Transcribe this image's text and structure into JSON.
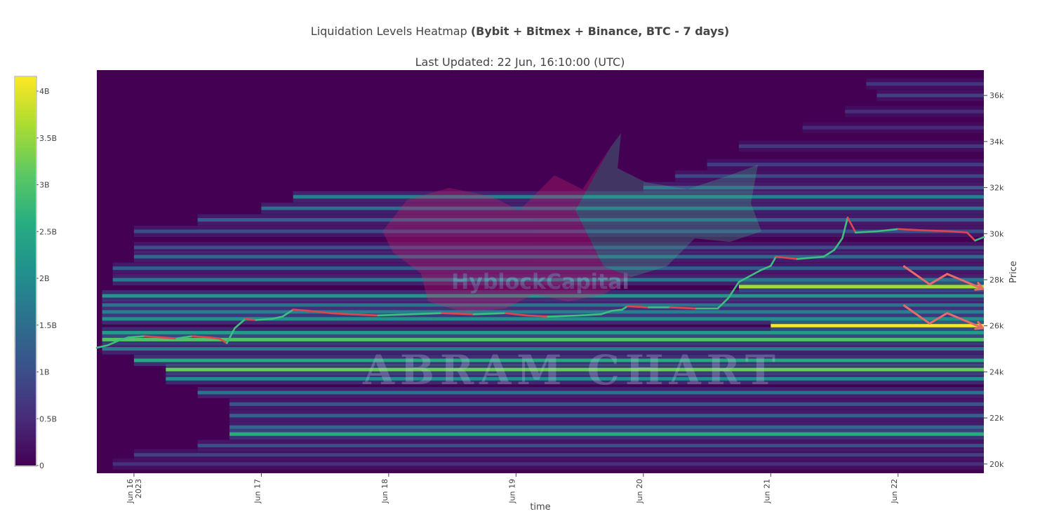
{
  "chart_data": {
    "type": "heatmap",
    "title_prefix": "Liquidation Levels Heatmap ",
    "title_bold": "(Bybit + Bitmex + Binance, BTC - 7 days)",
    "subtitle": "Last Updated: 22 Jun, 16:10:00 (UTC)",
    "xlabel": "time",
    "ylabel": "Price",
    "x_range": [
      "2023-06-15 17:00",
      "2023-06-22 16:10"
    ],
    "x_ticks": [
      {
        "t": "2023-06-16",
        "label": "Jun 16",
        "sub": "2023"
      },
      {
        "t": "2023-06-17",
        "label": "Jun 17",
        "sub": ""
      },
      {
        "t": "2023-06-18",
        "label": "Jun 18",
        "sub": ""
      },
      {
        "t": "2023-06-19",
        "label": "Jun 19",
        "sub": ""
      },
      {
        "t": "2023-06-20",
        "label": "Jun 20",
        "sub": ""
      },
      {
        "t": "2023-06-21",
        "label": "Jun 21",
        "sub": ""
      },
      {
        "t": "2023-06-22",
        "label": "Jun 22",
        "sub": ""
      }
    ],
    "y_range": [
      19600,
      37100
    ],
    "y_ticks": [
      {
        "v": 20000,
        "label": "20k"
      },
      {
        "v": 22000,
        "label": "22k"
      },
      {
        "v": 24000,
        "label": "24k"
      },
      {
        "v": 26000,
        "label": "26k"
      },
      {
        "v": 28000,
        "label": "28k"
      },
      {
        "v": 30000,
        "label": "30k"
      },
      {
        "v": 32000,
        "label": "32k"
      },
      {
        "v": 34000,
        "label": "34k"
      },
      {
        "v": 36000,
        "label": "36k"
      }
    ],
    "colorbar": {
      "min": 0,
      "max": 4150000000,
      "ticks": [
        {
          "v": 0,
          "label": "0"
        },
        {
          "v": 500000000,
          "label": "0.5B"
        },
        {
          "v": 1000000000,
          "label": "1B"
        },
        {
          "v": 1500000000,
          "label": "1.5B"
        },
        {
          "v": 2000000000,
          "label": "2B"
        },
        {
          "v": 2500000000,
          "label": "2.5B"
        },
        {
          "v": 3000000000,
          "label": "3B"
        },
        {
          "v": 3500000000,
          "label": "3.5B"
        },
        {
          "v": 4000000000,
          "label": "4B"
        }
      ],
      "colorscale": [
        "#440154",
        "#472c7a",
        "#3b518b",
        "#2c718e",
        "#21908d",
        "#27ad81",
        "#5cc863",
        "#aadc32",
        "#fde725"
      ]
    },
    "heat_bands": [
      {
        "price": 36500,
        "start": "2023-06-21 18:00",
        "value": 650000000
      },
      {
        "price": 36000,
        "start": "2023-06-21 20:00",
        "value": 800000000
      },
      {
        "price": 35300,
        "start": "2023-06-21 14:00",
        "value": 550000000
      },
      {
        "price": 34600,
        "start": "2023-06-21 06:00",
        "value": 500000000
      },
      {
        "price": 33800,
        "start": "2023-06-20 18:00",
        "value": 700000000
      },
      {
        "price": 33000,
        "start": "2023-06-20 12:00",
        "value": 750000000
      },
      {
        "price": 32500,
        "start": "2023-06-20 06:00",
        "value": 900000000
      },
      {
        "price": 32000,
        "start": "2023-06-20 00:00",
        "value": 1200000000
      },
      {
        "price": 31600,
        "start": "2023-06-17 06:00",
        "value": 1800000000
      },
      {
        "price": 31100,
        "start": "2023-06-17 00:00",
        "value": 1500000000
      },
      {
        "price": 30600,
        "start": "2023-06-16 12:00",
        "value": 1300000000
      },
      {
        "price": 30100,
        "start": "2023-06-16 00:00",
        "value": 1000000000
      },
      {
        "price": 29400,
        "start": "2023-06-16 00:00",
        "value": 1000000000
      },
      {
        "price": 29000,
        "start": "2023-06-16 00:00",
        "value": 1400000000
      },
      {
        "price": 28500,
        "start": "2023-06-15 20:00",
        "value": 1200000000
      },
      {
        "price": 28000,
        "start": "2023-06-15 20:00",
        "value": 1700000000
      },
      {
        "price": 27700,
        "start": "2023-06-20 18:00",
        "value": 3600000000
      },
      {
        "price": 27300,
        "start": "2023-06-15 18:00",
        "value": 2200000000
      },
      {
        "price": 26900,
        "start": "2023-06-15 18:00",
        "value": 1600000000
      },
      {
        "price": 26600,
        "start": "2023-06-15 18:00",
        "value": 1800000000
      },
      {
        "price": 26300,
        "start": "2023-06-15 18:00",
        "value": 2100000000
      },
      {
        "price": 26000,
        "start": "2023-06-21 00:00",
        "value": 4150000000
      },
      {
        "price": 25700,
        "start": "2023-06-15 18:00",
        "value": 2300000000
      },
      {
        "price": 25400,
        "start": "2023-06-15 18:00",
        "value": 3000000000
      },
      {
        "price": 25000,
        "start": "2023-06-15 18:00",
        "value": 1700000000
      },
      {
        "price": 24500,
        "start": "2023-06-16 00:00",
        "value": 2500000000
      },
      {
        "price": 24100,
        "start": "2023-06-16 06:00",
        "value": 3200000000
      },
      {
        "price": 23700,
        "start": "2023-06-16 06:00",
        "value": 2000000000
      },
      {
        "price": 23100,
        "start": "2023-06-16 12:00",
        "value": 1600000000
      },
      {
        "price": 22600,
        "start": "2023-06-16 18:00",
        "value": 1100000000
      },
      {
        "price": 22100,
        "start": "2023-06-16 18:00",
        "value": 1300000000
      },
      {
        "price": 21600,
        "start": "2023-06-16 18:00",
        "value": 1400000000
      },
      {
        "price": 21300,
        "start": "2023-06-16 18:00",
        "value": 2600000000
      },
      {
        "price": 20800,
        "start": "2023-06-16 12:00",
        "value": 1000000000
      },
      {
        "price": 20400,
        "start": "2023-06-16 00:00",
        "value": 800000000
      },
      {
        "price": 20000,
        "start": "2023-06-15 20:00",
        "value": 600000000
      }
    ],
    "price_series": {
      "name": "BTC",
      "points": [
        [
          "2023-06-15 17:00",
          25050
        ],
        [
          "2023-06-15 19:00",
          25150
        ],
        [
          "2023-06-15 21:00",
          25350
        ],
        [
          "2023-06-15 23:00",
          25500
        ],
        [
          "2023-06-16 02:00",
          25550
        ],
        [
          "2023-06-16 05:00",
          25500
        ],
        [
          "2023-06-16 08:00",
          25450
        ],
        [
          "2023-06-16 11:00",
          25550
        ],
        [
          "2023-06-16 14:00",
          25500
        ],
        [
          "2023-06-16 16:00",
          25450
        ],
        [
          "2023-06-16 17:30",
          25250
        ],
        [
          "2023-06-16 19:00",
          25900
        ],
        [
          "2023-06-16 21:00",
          26300
        ],
        [
          "2023-06-16 23:00",
          26250
        ],
        [
          "2023-06-17 02:00",
          26300
        ],
        [
          "2023-06-17 04:00",
          26400
        ],
        [
          "2023-06-17 06:00",
          26700
        ],
        [
          "2023-06-17 09:00",
          26650
        ],
        [
          "2023-06-17 13:00",
          26550
        ],
        [
          "2023-06-17 17:00",
          26500
        ],
        [
          "2023-06-17 22:00",
          26450
        ],
        [
          "2023-06-18 04:00",
          26500
        ],
        [
          "2023-06-18 10:00",
          26550
        ],
        [
          "2023-06-18 16:00",
          26500
        ],
        [
          "2023-06-18 22:00",
          26550
        ],
        [
          "2023-06-19 02:00",
          26450
        ],
        [
          "2023-06-19 06:00",
          26400
        ],
        [
          "2023-06-19 12:00",
          26450
        ],
        [
          "2023-06-19 16:00",
          26500
        ],
        [
          "2023-06-19 18:00",
          26650
        ],
        [
          "2023-06-19 20:00",
          26700
        ],
        [
          "2023-06-19 21:00",
          26850
        ],
        [
          "2023-06-20 01:00",
          26800
        ],
        [
          "2023-06-20 05:00",
          26800
        ],
        [
          "2023-06-20 10:00",
          26750
        ],
        [
          "2023-06-20 14:00",
          26750
        ],
        [
          "2023-06-20 16:00",
          27200
        ],
        [
          "2023-06-20 18:00",
          27900
        ],
        [
          "2023-06-20 22:00",
          28400
        ],
        [
          "2023-06-21 00:00",
          28600
        ],
        [
          "2023-06-21 01:00",
          29000
        ],
        [
          "2023-06-21 05:00",
          28900
        ],
        [
          "2023-06-21 10:00",
          29000
        ],
        [
          "2023-06-21 12:00",
          29300
        ],
        [
          "2023-06-21 13:30",
          29800
        ],
        [
          "2023-06-21 14:30",
          30700
        ],
        [
          "2023-06-21 16:00",
          30050
        ],
        [
          "2023-06-21 20:00",
          30100
        ],
        [
          "2023-06-22 00:00",
          30200
        ],
        [
          "2023-06-22 04:00",
          30150
        ],
        [
          "2023-06-22 10:00",
          30100
        ],
        [
          "2023-06-22 13:00",
          30050
        ],
        [
          "2023-06-22 14:30",
          29700
        ],
        [
          "2023-06-22 16:10",
          29850
        ]
      ]
    },
    "annotation_arrows": [
      {
        "t1": "2023-06-22 01:00",
        "p1": 28600,
        "t2": "2023-06-22 16:00",
        "p2": 27600,
        "color": "#e86a6a"
      },
      {
        "t1": "2023-06-22 01:00",
        "p1": 26900,
        "t2": "2023-06-22 16:00",
        "p2": 25900,
        "color": "#e86a6a"
      }
    ]
  },
  "watermarks": {
    "brand_1": "HyblockCapital",
    "brand_2": "ABRAM CHART"
  }
}
